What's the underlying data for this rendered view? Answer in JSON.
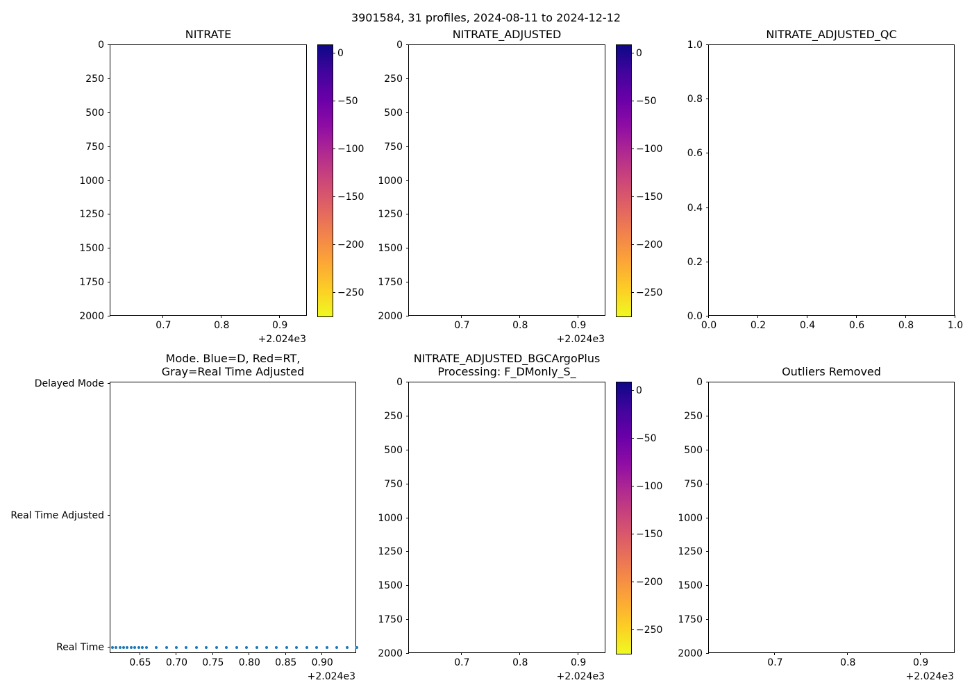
{
  "figure": {
    "suptitle": "3901584, 31 profiles, 2024-08-11 to 2024-12-12",
    "background": "#ffffff",
    "platform_id": "3901584",
    "n_profiles": 31,
    "date_range": "2024-08-11 to 2024-12-12"
  },
  "colors": {
    "axis": "#000000",
    "text": "#000000",
    "scatter_blue": "#1f77b4",
    "plasma_colormap": [
      "#0d0887",
      "#41049d",
      "#6a00a8",
      "#8f0da4",
      "#b12a90",
      "#cc4778",
      "#e16462",
      "#f2844b",
      "#fca636",
      "#fcce25",
      "#f0f921"
    ]
  },
  "chart_data": [
    {
      "panel": "NITRATE",
      "type": "heatmap",
      "title": "NITRATE",
      "notes": "axes and colorbar drawn, no gridded data visible (empty plot area)",
      "xlim": [
        0.609,
        0.9475
      ],
      "x_offset_label": "+2.024e3",
      "xticks": [
        {
          "v": 0.7,
          "label": "0.7"
        },
        {
          "v": 0.8,
          "label": "0.8"
        },
        {
          "v": 0.9,
          "label": "0.9"
        }
      ],
      "ylim": [
        0,
        2000
      ],
      "y_inverted": true,
      "yticks": [
        {
          "v": 0,
          "label": "0"
        },
        {
          "v": 250,
          "label": "250"
        },
        {
          "v": 500,
          "label": "500"
        },
        {
          "v": 750,
          "label": "750"
        },
        {
          "v": 1000,
          "label": "1000"
        },
        {
          "v": 1250,
          "label": "1250"
        },
        {
          "v": 1500,
          "label": "1500"
        },
        {
          "v": 1750,
          "label": "1750"
        },
        {
          "v": 2000,
          "label": "2000"
        }
      ],
      "colorbar": {
        "colormap": "plasma",
        "top_value": 9,
        "bottom_value": -275,
        "ticks": [
          {
            "v": 0,
            "label": "0"
          },
          {
            "v": -50,
            "label": "−50"
          },
          {
            "v": -100,
            "label": "−100"
          },
          {
            "v": -150,
            "label": "−150"
          },
          {
            "v": -200,
            "label": "−200"
          },
          {
            "v": -250,
            "label": "−250"
          }
        ]
      }
    },
    {
      "panel": "NITRATE_ADJUSTED",
      "type": "heatmap",
      "title": "NITRATE_ADJUSTED",
      "notes": "axes and colorbar drawn, no gridded data visible (empty plot area)",
      "xlim": [
        0.609,
        0.9475
      ],
      "x_offset_label": "+2.024e3",
      "xticks": [
        {
          "v": 0.7,
          "label": "0.7"
        },
        {
          "v": 0.8,
          "label": "0.8"
        },
        {
          "v": 0.9,
          "label": "0.9"
        }
      ],
      "ylim": [
        0,
        2000
      ],
      "y_inverted": true,
      "yticks": [
        {
          "v": 0,
          "label": "0"
        },
        {
          "v": 250,
          "label": "250"
        },
        {
          "v": 500,
          "label": "500"
        },
        {
          "v": 750,
          "label": "750"
        },
        {
          "v": 1000,
          "label": "1000"
        },
        {
          "v": 1250,
          "label": "1250"
        },
        {
          "v": 1500,
          "label": "1500"
        },
        {
          "v": 1750,
          "label": "1750"
        },
        {
          "v": 2000,
          "label": "2000"
        }
      ],
      "colorbar": {
        "colormap": "plasma",
        "top_value": 9,
        "bottom_value": -275,
        "ticks": [
          {
            "v": 0,
            "label": "0"
          },
          {
            "v": -50,
            "label": "−50"
          },
          {
            "v": -100,
            "label": "−100"
          },
          {
            "v": -150,
            "label": "−150"
          },
          {
            "v": -200,
            "label": "−200"
          },
          {
            "v": -250,
            "label": "−250"
          }
        ]
      }
    },
    {
      "panel": "NITRATE_ADJUSTED_QC",
      "type": "scatter",
      "title": "NITRATE_ADJUSTED_QC",
      "notes": "empty axes, default 0-1 limits, no data plotted",
      "xlim": [
        0,
        1
      ],
      "xticks": [
        {
          "v": 0,
          "label": "0.0"
        },
        {
          "v": 0.2,
          "label": "0.2"
        },
        {
          "v": 0.4,
          "label": "0.4"
        },
        {
          "v": 0.6,
          "label": "0.6"
        },
        {
          "v": 0.8,
          "label": "0.8"
        },
        {
          "v": 1,
          "label": "1.0"
        }
      ],
      "ylim": [
        0,
        1
      ],
      "y_inverted": false,
      "yticks": [
        {
          "v": 0,
          "label": "0.0"
        },
        {
          "v": 0.2,
          "label": "0.2"
        },
        {
          "v": 0.4,
          "label": "0.4"
        },
        {
          "v": 0.6,
          "label": "0.6"
        },
        {
          "v": 0.8,
          "label": "0.8"
        },
        {
          "v": 1,
          "label": "1.0"
        }
      ]
    },
    {
      "panel": "MODE",
      "type": "scatter",
      "title": "Mode. Blue=D, Red=RT,\nGray=Real Time Adjusted",
      "notes": "all 31 profiles plotted at Real Time level in blue",
      "xlim": [
        0.609,
        0.9475
      ],
      "x_offset_label": "+2.024e3",
      "xticks": [
        {
          "v": 0.65,
          "label": "0.65"
        },
        {
          "v": 0.7,
          "label": "0.70"
        },
        {
          "v": 0.75,
          "label": "0.75"
        },
        {
          "v": 0.8,
          "label": "0.80"
        },
        {
          "v": 0.85,
          "label": "0.85"
        },
        {
          "v": 0.9,
          "label": "0.90"
        }
      ],
      "ylim": [
        -0.05,
        2.01
      ],
      "y_inverted": false,
      "yticks": [
        {
          "v": 2,
          "label": "Delayed Mode"
        },
        {
          "v": 1,
          "label": "Real Time Adjusted"
        },
        {
          "v": 0,
          "label": "Real Time"
        }
      ],
      "series": [
        {
          "name": "Real Time profiles",
          "color": "#1f77b4",
          "y": 0,
          "x": [
            0.6115,
            0.6167,
            0.6219,
            0.6271,
            0.6323,
            0.6375,
            0.6427,
            0.6479,
            0.6531,
            0.6583,
            0.672,
            0.6858,
            0.6996,
            0.7133,
            0.7271,
            0.7409,
            0.7547,
            0.7684,
            0.7822,
            0.796,
            0.8098,
            0.8235,
            0.8373,
            0.8511,
            0.8649,
            0.8786,
            0.8924,
            0.9062,
            0.92,
            0.9337,
            0.9475
          ]
        }
      ]
    },
    {
      "panel": "NITRATE_ADJUSTED_BGCArgoPlus",
      "type": "heatmap",
      "title": "NITRATE_ADJUSTED_BGCArgoPlus\nProcessing: F_DMonly_S_",
      "notes": "axes and colorbar drawn, no gridded data visible (empty plot area)",
      "xlim": [
        0.609,
        0.9475
      ],
      "x_offset_label": "+2.024e3",
      "xticks": [
        {
          "v": 0.7,
          "label": "0.7"
        },
        {
          "v": 0.8,
          "label": "0.8"
        },
        {
          "v": 0.9,
          "label": "0.9"
        }
      ],
      "ylim": [
        0,
        2000
      ],
      "y_inverted": true,
      "yticks": [
        {
          "v": 0,
          "label": "0"
        },
        {
          "v": 250,
          "label": "250"
        },
        {
          "v": 500,
          "label": "500"
        },
        {
          "v": 750,
          "label": "750"
        },
        {
          "v": 1000,
          "label": "1000"
        },
        {
          "v": 1250,
          "label": "1250"
        },
        {
          "v": 1500,
          "label": "1500"
        },
        {
          "v": 1750,
          "label": "1750"
        },
        {
          "v": 2000,
          "label": "2000"
        }
      ],
      "colorbar": {
        "colormap": "plasma",
        "top_value": 9,
        "bottom_value": -275,
        "ticks": [
          {
            "v": 0,
            "label": "0"
          },
          {
            "v": -50,
            "label": "−50"
          },
          {
            "v": -100,
            "label": "−100"
          },
          {
            "v": -150,
            "label": "−150"
          },
          {
            "v": -200,
            "label": "−200"
          },
          {
            "v": -250,
            "label": "−250"
          }
        ]
      }
    },
    {
      "panel": "OUTLIERS_REMOVED",
      "type": "heatmap",
      "title": "Outliers Removed",
      "notes": "axes drawn, no data visible (empty plot area)",
      "xlim": [
        0.609,
        0.9475
      ],
      "x_offset_label": "+2.024e3",
      "xticks": [
        {
          "v": 0.7,
          "label": "0.7"
        },
        {
          "v": 0.8,
          "label": "0.8"
        },
        {
          "v": 0.9,
          "label": "0.9"
        }
      ],
      "ylim": [
        0,
        2000
      ],
      "y_inverted": true,
      "yticks": [
        {
          "v": 0,
          "label": "0"
        },
        {
          "v": 250,
          "label": "250"
        },
        {
          "v": 500,
          "label": "500"
        },
        {
          "v": 750,
          "label": "750"
        },
        {
          "v": 1000,
          "label": "1000"
        },
        {
          "v": 1250,
          "label": "1250"
        },
        {
          "v": 1500,
          "label": "1500"
        },
        {
          "v": 1750,
          "label": "1750"
        },
        {
          "v": 2000,
          "label": "2000"
        }
      ]
    }
  ]
}
